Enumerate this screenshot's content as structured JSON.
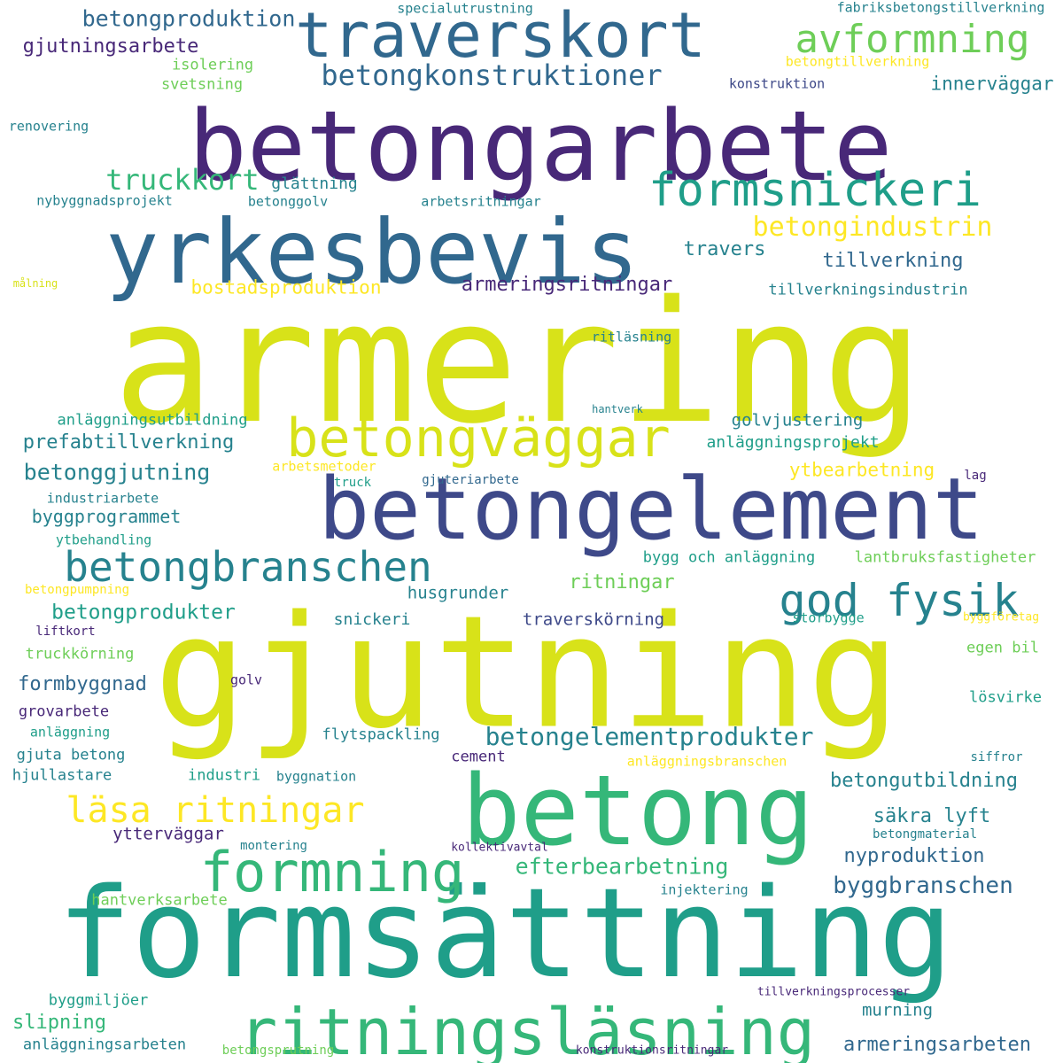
{
  "palette": {
    "dark_purple": "#482878",
    "indigo": "#3e4989",
    "blue": "#31688e",
    "teal": "#26828e",
    "green_teal": "#1f9e89",
    "green": "#35b779",
    "light_green": "#6ece58",
    "lime": "#b5de2b",
    "yellow": "#d8e219",
    "bright_yellow": "#fde725"
  },
  "words": [
    "armering",
    "gjutning",
    "formsättning",
    "betongarbete",
    "betongelement",
    "betong",
    "yrkesbevis",
    "ritningsläsning",
    "traverskort",
    "betongväggar",
    "formning",
    "formsnickeri",
    "betongbranschen",
    "god fysik",
    "avformning",
    "läsa ritningar",
    "betongkonstruktioner",
    "betongelementprodukter",
    "betongindustrin",
    "truckkort",
    "byggbranschen",
    "betongproduktion",
    "efterbearbetning",
    "betonggjutning",
    "betongprodukter",
    "betongutbildning",
    "armeringsritningar",
    "prefabtillverkning",
    "gjutningsarbete",
    "armeringsarbeten",
    "ritningar",
    "tillverkning",
    "bostadsproduktion",
    "ytbearbetning",
    "formbyggnad",
    "byggprogrammet",
    "nyproduktion",
    "säkra lyft",
    "innerväggar",
    "travers",
    "golvjustering",
    "husgrunder",
    "traverskörning",
    "ytterväggar",
    "murning",
    "slipning",
    "snickeri",
    "glättning",
    "anläggningsprojekt",
    "anläggningsutbildning",
    "tillverkningsindustrin",
    "lantbruksfastigheter",
    "bygg och anläggning",
    "industri",
    "grovarbete",
    "anläggningsarbeten",
    "hantverksarbete",
    "byggmiljöer",
    "anläggningsbranschen",
    "flytspackling",
    "truckkörning",
    "egen bil",
    "lösvirke",
    "gjuta betong",
    "hjullastare",
    "cement",
    "injektering",
    "ytbehandling",
    "industriarbete",
    "isolering",
    "svetsning",
    "konstruktion",
    "betonggolv",
    "arbetsritningar",
    "nybyggnadsprojekt",
    "renovering",
    "ritläsning",
    "betongtillverkning",
    "specialutrustning",
    "fabriksbetongstillverkning",
    "arbetsmetoder",
    "truck",
    "gjuteriarbete",
    "lag",
    "storbygge",
    "byggföretag",
    "liftkort",
    "betongpumpning",
    "golv",
    "anläggning",
    "siffror",
    "byggnation",
    "betongmaterial",
    "montering",
    "kollektivavtal",
    "tillverkningsprocesser",
    "konstruktionsritningar",
    "betongsprutning",
    "hantverk",
    "målning"
  ]
}
